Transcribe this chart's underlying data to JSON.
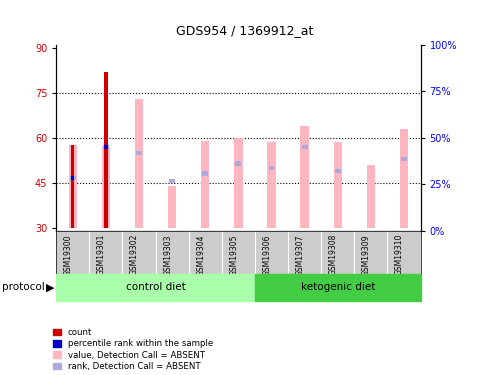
{
  "title": "GDS954 / 1369912_at",
  "samples": [
    "GSM19300",
    "GSM19301",
    "GSM19302",
    "GSM19303",
    "GSM19304",
    "GSM19305",
    "GSM19306",
    "GSM19307",
    "GSM19308",
    "GSM19309",
    "GSM19310"
  ],
  "ylim_left": [
    29,
    91
  ],
  "ylim_right": [
    0,
    100
  ],
  "yticks_left": [
    30,
    45,
    60,
    75,
    90
  ],
  "yticks_right": [
    0,
    25,
    50,
    75,
    100
  ],
  "ytick_labels_right": [
    "0%",
    "25%",
    "50%",
    "75%",
    "100%"
  ],
  "red_bar_heights": [
    57.5,
    82.0,
    null,
    null,
    null,
    null,
    null,
    null,
    null,
    null,
    null
  ],
  "blue_bar_heights": [
    46.5,
    57.0,
    null,
    null,
    null,
    null,
    null,
    null,
    null,
    null,
    null
  ],
  "pink_bar_tops": [
    57.5,
    57.0,
    73.0,
    44.0,
    59.0,
    60.0,
    58.5,
    64.0,
    58.5,
    51.0,
    63.0
  ],
  "pink_bar_bottoms": [
    30,
    30,
    30,
    30,
    30,
    30,
    30,
    30,
    30,
    30,
    30
  ],
  "lightblue_bar_heights": [
    46.5,
    57.0,
    55.0,
    45.5,
    48.0,
    51.5,
    50.0,
    57.0,
    49.0,
    null,
    53.0
  ],
  "grid_yticks": [
    45,
    60,
    75
  ],
  "color_red": "#CC0000",
  "color_blue": "#0000CC",
  "color_pink": "#FFB6C1",
  "color_lightblue": "#AAAADD",
  "label_area_color": "#CCCCCC",
  "control_group_color": "#AAFFAA",
  "ketogenic_group_color": "#44CC44",
  "legend_labels": [
    "count",
    "percentile rank within the sample",
    "value, Detection Call = ABSENT",
    "rank, Detection Call = ABSENT"
  ]
}
